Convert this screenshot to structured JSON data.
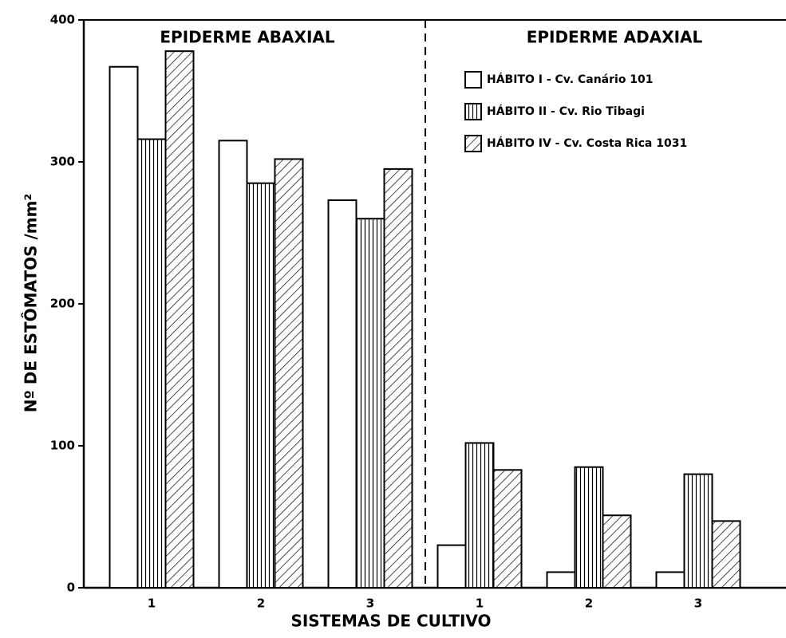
{
  "chart_data": {
    "type": "bar",
    "y_label": "Nº DE ESTÔMATOS /mm²",
    "x_label": "SISTEMAS DE CULTIVO",
    "sections": [
      "EPIDERME ABAXIAL",
      "EPIDERME ADAXIAL"
    ],
    "categories": [
      "1",
      "2",
      "3",
      "1",
      "2",
      "3"
    ],
    "series": [
      {
        "name": "HÁBITO I - Cv. Canário 101",
        "color": "#ffffff",
        "pattern": "none",
        "values": [
          367,
          315,
          273,
          30,
          11,
          11
        ]
      },
      {
        "name": "HÁBITO II - Cv. Rio Tibagi",
        "color": "#ffffff",
        "pattern": "vertical",
        "values": [
          316,
          285,
          260,
          102,
          85,
          80
        ]
      },
      {
        "name": "HÁBITO IV - Cv. Costa Rica 1031",
        "color": "#ffffff",
        "pattern": "diagonal",
        "values": [
          378,
          302,
          295,
          83,
          51,
          47
        ]
      }
    ],
    "ylim": [
      0,
      400
    ],
    "yticks": [
      0,
      100,
      200,
      300,
      400
    ]
  }
}
